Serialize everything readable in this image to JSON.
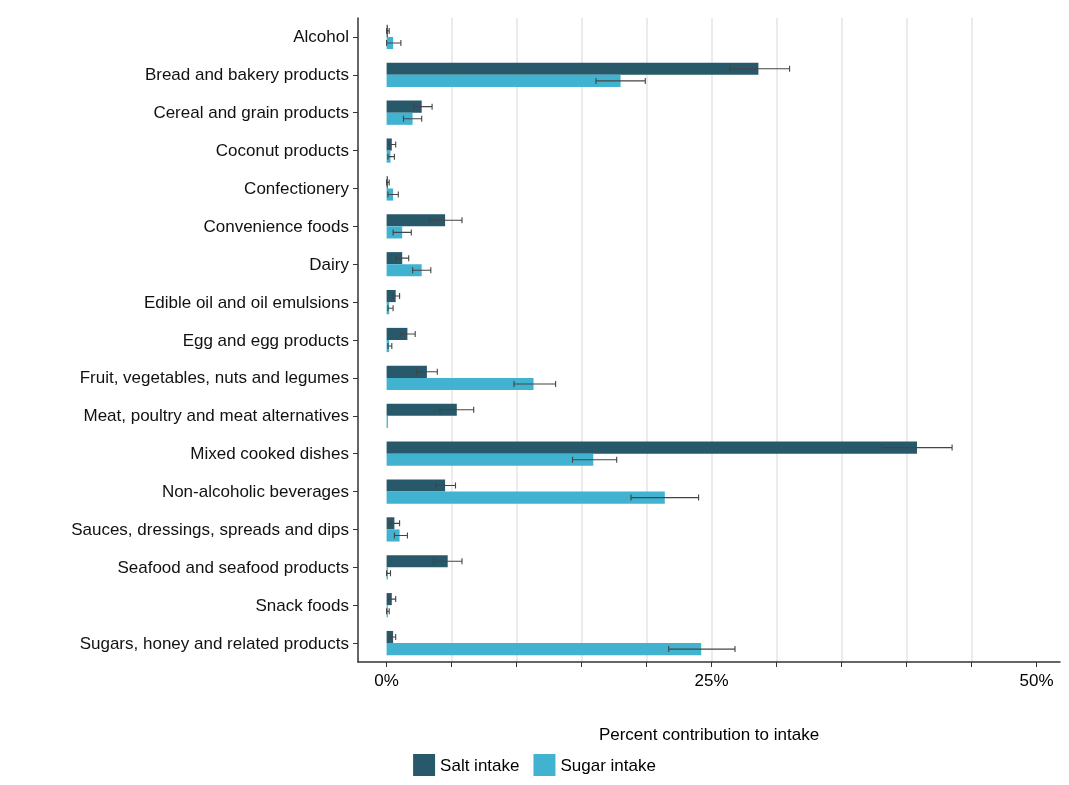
{
  "chart_data": {
    "type": "bar",
    "orientation": "horizontal",
    "xlabel": "Percent contribution to intake",
    "categories": [
      "Alcohol",
      "Bread and bakery products",
      "Cereal and grain products",
      "Coconut products",
      "Confectionery",
      "Convenience foods",
      "Dairy",
      "Edible oil and oil emulsions",
      "Egg and egg products",
      "Fruit, vegetables, nuts and legumes",
      "Meat, poultry and meat alternatives",
      "Mixed cooked dishes",
      "Non-alcoholic beverages",
      "Sauces, dressings, spreads and dips",
      "Seafood and seafood products",
      "Snack foods",
      "Sugars, honey and related products"
    ],
    "series": [
      {
        "name": "Salt intake",
        "color": "#27596b",
        "values": [
          0.1,
          28.6,
          2.7,
          0.4,
          0.1,
          4.5,
          1.2,
          0.7,
          1.6,
          3.1,
          5.4,
          40.8,
          4.5,
          0.6,
          4.7,
          0.4,
          0.5
        ],
        "errors": [
          [
            0,
            0.2
          ],
          [
            26.4,
            31.0
          ],
          [
            2.1,
            3.5
          ],
          [
            0.2,
            0.7
          ],
          [
            0,
            0.2
          ],
          [
            3.3,
            5.8
          ],
          [
            0.7,
            1.7
          ],
          [
            0.5,
            1.0
          ],
          [
            1.1,
            2.2
          ],
          [
            2.3,
            3.9
          ],
          [
            4.1,
            6.7
          ],
          [
            38.1,
            43.5
          ],
          [
            3.8,
            5.3
          ],
          [
            0.3,
            1.0
          ],
          [
            3.6,
            5.8
          ],
          [
            0.1,
            0.7
          ],
          [
            0.3,
            0.7
          ]
        ]
      },
      {
        "name": "Sugar intake",
        "color": "#41b3d0",
        "values": [
          0.5,
          18.0,
          2.0,
          0.3,
          0.5,
          1.2,
          2.7,
          0.2,
          0.2,
          11.3,
          0.1,
          15.9,
          21.4,
          1.0,
          0.1,
          0.1,
          24.2
        ],
        "errors": [
          [
            0,
            1.1
          ],
          [
            16.1,
            19.9
          ],
          [
            1.3,
            2.7
          ],
          [
            0.1,
            0.6
          ],
          [
            0.1,
            0.9
          ],
          [
            0.5,
            1.9
          ],
          [
            2.0,
            3.4
          ],
          [
            0.1,
            0.5
          ],
          [
            0.1,
            0.4
          ],
          [
            9.8,
            13.0
          ],
          null,
          [
            14.3,
            17.7
          ],
          [
            18.8,
            24.0
          ],
          [
            0.6,
            1.6
          ],
          [
            0,
            0.3
          ],
          [
            0,
            0.2
          ],
          [
            21.7,
            26.8
          ]
        ]
      }
    ],
    "xlim": [
      -2.2,
      51.8
    ],
    "xticks": [
      {
        "value": 0,
        "label": "0%"
      },
      {
        "value": 5,
        "label": null
      },
      {
        "value": 10,
        "label": null
      },
      {
        "value": 15,
        "label": null
      },
      {
        "value": 20,
        "label": null
      },
      {
        "value": 25,
        "label": "25%"
      },
      {
        "value": 30,
        "label": null
      },
      {
        "value": 35,
        "label": null
      },
      {
        "value": 40,
        "label": null
      },
      {
        "value": 45,
        "label": null
      },
      {
        "value": 50,
        "label": "50%"
      }
    ],
    "grid": "x",
    "legend": "bottom"
  }
}
